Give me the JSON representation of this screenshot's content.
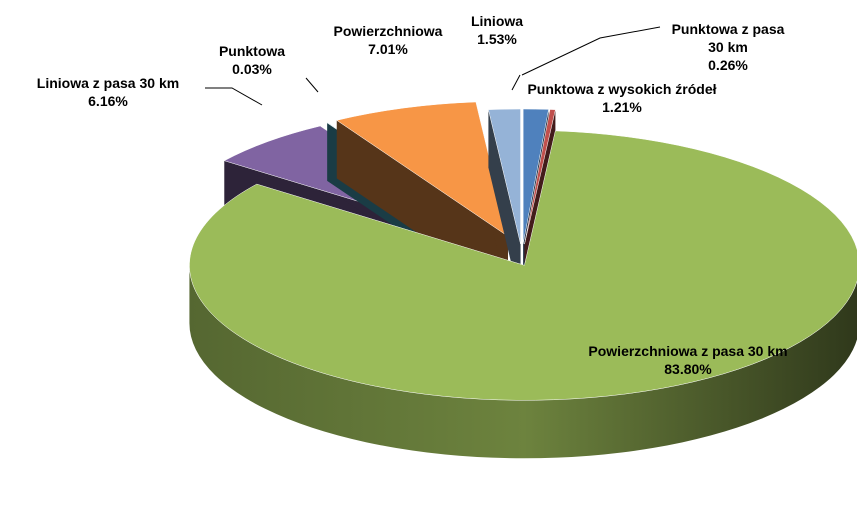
{
  "chart_data": {
    "type": "pie",
    "categories": [
      "Punktowa z wysokich źródeł",
      "Punktowa z pasa 30 km",
      "Powierzchniowa z pasa 30 km",
      "Liniowa z pasa 30 km",
      "Punktowa",
      "Powierzchniowa",
      "Liniowa"
    ],
    "values": [
      1.21,
      0.26,
      83.8,
      6.16,
      0.03,
      7.01,
      1.53
    ],
    "value_labels": [
      "1.21%",
      "0.26%",
      "83.80%",
      "6.16%",
      "0.03%",
      "7.01%",
      "1.53%"
    ],
    "colors": [
      "#4f81bd",
      "#c0504d",
      "#9bbb59",
      "#8064a2",
      "#4bacc6",
      "#f79646",
      "#95b3d7"
    ]
  }
}
